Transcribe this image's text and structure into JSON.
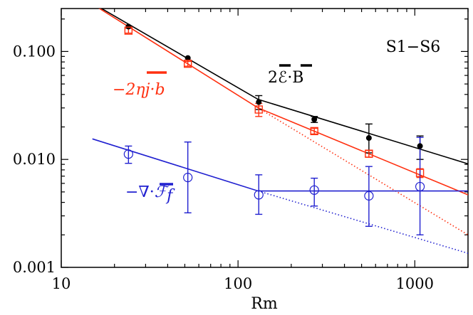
{
  "chart_data": {
    "type": "scatter",
    "title": "",
    "xlabel": "Rm",
    "ylabel": "",
    "xscale": "log",
    "yscale": "log",
    "xlim": [
      10,
      2000
    ],
    "ylim": [
      0.001,
      0.25
    ],
    "grid": false,
    "x_ticks": [
      {
        "value": 10,
        "label": "10"
      },
      {
        "value": 100,
        "label": "100"
      },
      {
        "value": 1000,
        "label": "1000"
      }
    ],
    "y_ticks": [
      {
        "value": 0.001,
        "label": "0.001"
      },
      {
        "value": 0.01,
        "label": "0.010"
      },
      {
        "value": 0.1,
        "label": "0.100"
      }
    ],
    "x": [
      24,
      52,
      131,
      270,
      550,
      1070
    ],
    "annotation_corner": "S1−S6",
    "series": [
      {
        "key": "EB",
        "label": "2ℰ·B",
        "color": "#000000",
        "marker": "filled-circle",
        "y": [
          0.17,
          0.087,
          0.034,
          0.0235,
          0.0158,
          0.0133
        ],
        "err_low": [
          0.17,
          0.087,
          0.029,
          0.022,
          0.0115,
          0.01
        ],
        "err_high": [
          0.17,
          0.087,
          0.039,
          0.025,
          0.0213,
          0.0165
        ],
        "fit": [
          [
            15,
            0.28
          ],
          [
            130,
            0.036
          ],
          [
            2000,
            0.0091
          ]
        ]
      },
      {
        "key": "jb",
        "label_prefix": "−2η",
        "label_main": "j·b",
        "color": "#ff3010",
        "marker": "open-square",
        "y": [
          0.156,
          0.077,
          0.029,
          0.0183,
          0.0113,
          0.0075
        ],
        "err_low": [
          0.148,
          0.073,
          0.025,
          0.0172,
          0.0105,
          0.0068
        ],
        "err_high": [
          0.164,
          0.081,
          0.033,
          0.0194,
          0.0121,
          0.0082
        ],
        "fit": [
          [
            15,
            0.275
          ],
          [
            130,
            0.03
          ],
          [
            2000,
            0.0047
          ]
        ],
        "extrapolation": [
          [
            130,
            0.03
          ],
          [
            2000,
            0.002
          ]
        ]
      },
      {
        "key": "divF",
        "label_prefix": "−∇·",
        "label_main": "ℱ",
        "label_sub": "f",
        "color": "#2020d0",
        "marker": "open-circle",
        "y": [
          0.0112,
          0.0068,
          0.0047,
          0.0052,
          0.0046,
          0.0056
        ],
        "err_low": [
          0.0092,
          0.0032,
          0.0031,
          0.0037,
          0.0024,
          0.002
        ],
        "err_high": [
          0.0133,
          0.0145,
          0.0072,
          0.0067,
          0.0086,
          0.016
        ],
        "fit": [
          [
            15,
            0.0155
          ],
          [
            130,
            0.0051
          ],
          [
            2000,
            0.0051
          ]
        ],
        "extrapolation": [
          [
            130,
            0.0051
          ],
          [
            2000,
            0.00135
          ]
        ]
      }
    ]
  }
}
